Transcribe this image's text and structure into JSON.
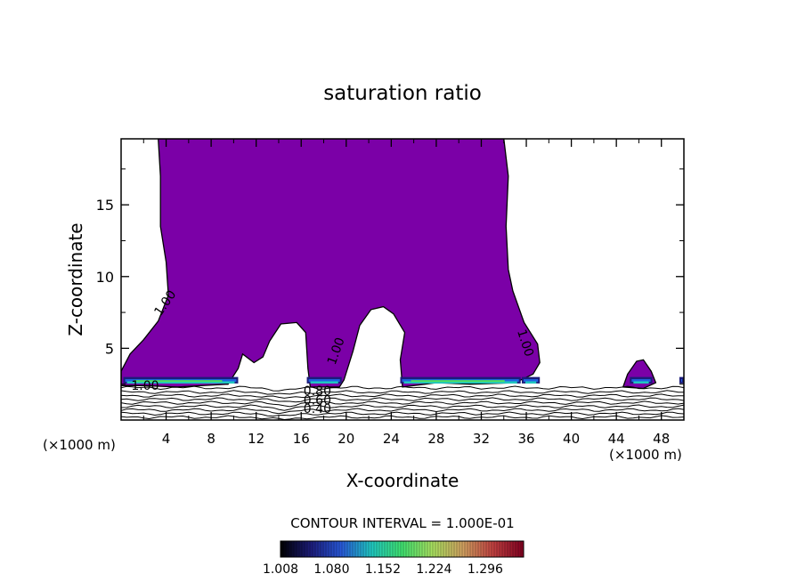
{
  "chart_data": {
    "type": "contour",
    "title": "saturation ratio",
    "xlabel": "X-coordinate",
    "ylabel": "Z-coordinate",
    "x_unit_label": "(×1000 m)",
    "xlim": [
      0,
      50
    ],
    "ylim": [
      0,
      19.6
    ],
    "x_ticks": [
      4,
      8,
      12,
      16,
      20,
      24,
      28,
      32,
      36,
      40,
      44,
      48
    ],
    "y_ticks": [
      5,
      10,
      15
    ],
    "contour_interval_label": "CONTOUR INTERVAL = 1.000E-01",
    "contour_labels": [
      {
        "text": "1.00",
        "x": 3.5,
        "z": 7.2,
        "rotate": -55
      },
      {
        "text": "1.00",
        "x": 0.9,
        "z": 2.1,
        "rotate": 0
      },
      {
        "text": "1.00",
        "x": 19.0,
        "z": 3.8,
        "rotate": -70
      },
      {
        "text": "1.00",
        "x": 35.2,
        "z": 6.2,
        "rotate": 72
      },
      {
        "text": "0.80",
        "x": 16.2,
        "z": 1.75,
        "rotate": 0
      },
      {
        "text": "0.60",
        "x": 16.2,
        "z": 1.1,
        "rotate": 0
      },
      {
        "text": "0.40",
        "x": 16.2,
        "z": 0.5,
        "rotate": 0
      }
    ],
    "saturated_region": [
      [
        0,
        2.4
      ],
      [
        0,
        3.4
      ],
      [
        0.8,
        4.6
      ],
      [
        2,
        5.6
      ],
      [
        3.3,
        6.9
      ],
      [
        4.2,
        8.7
      ],
      [
        4.0,
        11.0
      ],
      [
        3.5,
        13.5
      ],
      [
        3.5,
        17.0
      ],
      [
        3.3,
        19.6
      ],
      [
        34.0,
        19.6
      ],
      [
        34.4,
        17.0
      ],
      [
        34.2,
        13.5
      ],
      [
        34.4,
        10.5
      ],
      [
        34.8,
        9.0
      ],
      [
        35.8,
        6.8
      ],
      [
        37.0,
        5.3
      ],
      [
        37.2,
        4.0
      ],
      [
        36.6,
        3.2
      ],
      [
        35.0,
        2.6
      ],
      [
        31,
        2.5
      ],
      [
        28,
        2.6
      ],
      [
        25,
        2.3
      ],
      [
        24.8,
        4.2
      ],
      [
        25.2,
        6.1
      ],
      [
        24.2,
        7.4
      ],
      [
        23.3,
        7.9
      ],
      [
        22.2,
        7.7
      ],
      [
        21.2,
        6.6
      ],
      [
        20.6,
        4.8
      ],
      [
        19.8,
        2.8
      ],
      [
        19.4,
        2.3
      ],
      [
        16.8,
        2.3
      ],
      [
        16.6,
        3.6
      ],
      [
        16.4,
        6.1
      ],
      [
        15.6,
        6.8
      ],
      [
        14.2,
        6.7
      ],
      [
        13.2,
        5.5
      ],
      [
        12.6,
        4.4
      ],
      [
        11.8,
        4.0
      ],
      [
        10.8,
        4.6
      ],
      [
        10.4,
        3.6
      ],
      [
        9.5,
        2.5
      ],
      [
        5,
        2.3
      ],
      [
        2,
        2.4
      ]
    ],
    "small_saturated_region": [
      [
        44.6,
        2.3
      ],
      [
        45.0,
        3.2
      ],
      [
        45.8,
        4.1
      ],
      [
        46.4,
        4.2
      ],
      [
        47.1,
        3.4
      ],
      [
        47.5,
        2.6
      ],
      [
        46.4,
        2.2
      ]
    ],
    "colorbar": {
      "min": 1.008,
      "max": 1.35,
      "tick_labels": [
        "1.008",
        "1.080",
        "1.152",
        "1.224",
        "1.296"
      ],
      "colormap": [
        "#000000",
        "#1c1c7a",
        "#2858d8",
        "#20c8c0",
        "#40e070",
        "#a8e060",
        "#d0a060",
        "#c04040",
        "#800020"
      ]
    },
    "fill_color": "#7b00a7"
  }
}
